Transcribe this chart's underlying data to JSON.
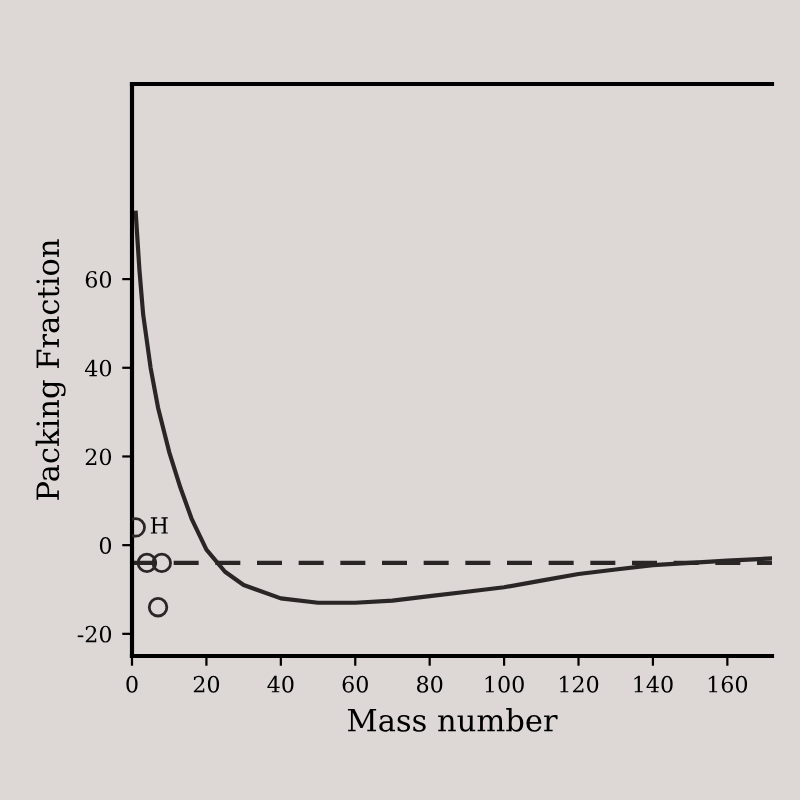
{
  "chart_data": {
    "type": "line",
    "xlabel": "Mass number",
    "ylabel": "Packing Fraction",
    "xlim": [
      0,
      172
    ],
    "ylim": [
      -25,
      104
    ],
    "xticks": [
      0,
      20,
      40,
      60,
      80,
      100,
      120,
      140,
      160
    ],
    "yticks": [
      -20,
      0,
      20,
      40,
      60
    ],
    "grid": false,
    "legend": false,
    "series": [
      {
        "color": "#2a2626",
        "x": [
          1,
          2,
          3,
          5,
          7,
          10,
          13,
          16,
          20,
          25,
          30,
          40,
          50,
          60,
          70,
          80,
          90,
          100,
          110,
          120,
          130,
          140,
          150,
          160,
          172
        ],
        "values": [
          75,
          62,
          52,
          40,
          31,
          21,
          13,
          6,
          -1,
          -6,
          -9,
          -12,
          -13,
          -13,
          -12.5,
          -11.5,
          -10.5,
          -9.5,
          -8,
          -6.5,
          -5.5,
          -4.5,
          -4,
          -3.5,
          -3
        ]
      },
      {
        "type": "scatter",
        "color": "#2a2626",
        "marker": "circle",
        "x": [
          1,
          4,
          8,
          7
        ],
        "values": [
          4,
          -4,
          -4,
          -14
        ]
      }
    ],
    "ref_lines": [
      {
        "axis": "y",
        "value": -4,
        "color": "#2a2626",
        "line_style": "dashed"
      }
    ],
    "annotations": [
      {
        "text": "H",
        "x": 1,
        "y": 4
      }
    ]
  }
}
